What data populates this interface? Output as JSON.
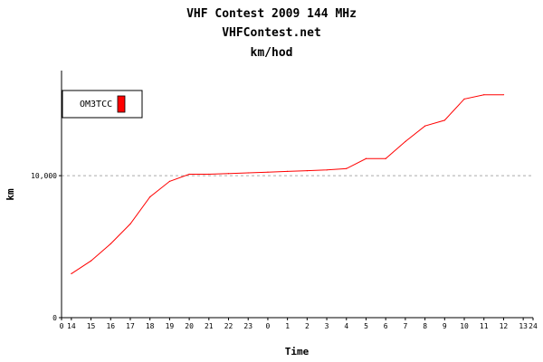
{
  "chart_data": {
    "type": "line",
    "title": "VHF Contest 2009 144 MHz",
    "subtitle": "VHFContest.net",
    "unit_title": "km/hod",
    "xlabel": "Time",
    "ylabel": "km",
    "x_tick_labels": [
      "0",
      "14",
      "15",
      "16",
      "17",
      "18",
      "19",
      "20",
      "21",
      "22",
      "23",
      "0",
      "1",
      "2",
      "3",
      "4",
      "5",
      "6",
      "7",
      "8",
      "9",
      "10",
      "11",
      "12",
      "13",
      "24"
    ],
    "x_tick_positions": [
      0,
      0.5,
      1.5,
      2.5,
      3.5,
      4.5,
      5.5,
      6.5,
      7.5,
      8.5,
      9.5,
      10.5,
      11.5,
      12.5,
      13.5,
      14.5,
      15.5,
      16.5,
      17.5,
      18.5,
      19.5,
      20.5,
      21.5,
      22.5,
      23.5,
      24
    ],
    "xlim": [
      0,
      24
    ],
    "y_ticks": [
      0,
      10000
    ],
    "y_tick_labels": [
      "0",
      "10,000"
    ],
    "ylim": [
      0,
      17400
    ],
    "grid": "dashed at 10,000",
    "legend": "top-left",
    "series": [
      {
        "name": "OM3TCC",
        "color": "#ff0000",
        "x": [
          0.5,
          1.5,
          2.5,
          3.5,
          4.5,
          5.5,
          6.5,
          7.5,
          8.5,
          9.5,
          10.5,
          11.5,
          12.5,
          13.5,
          14.5,
          15.5,
          16.5,
          17.5,
          18.5,
          19.5,
          20.5,
          21.5,
          22.5
        ],
        "y": [
          3100,
          4000,
          5200,
          6600,
          8500,
          9600,
          10100,
          10100,
          10150,
          10200,
          10250,
          10300,
          10350,
          10400,
          10500,
          11200,
          11200,
          12400,
          13500,
          13900,
          15400,
          15700,
          15700
        ]
      }
    ]
  }
}
